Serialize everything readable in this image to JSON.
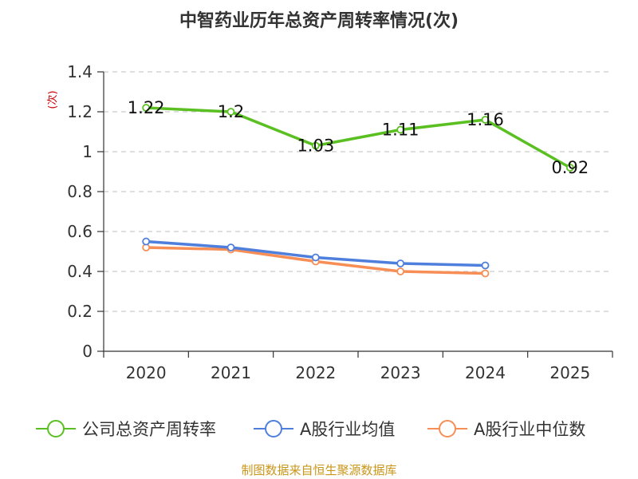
{
  "chart_data": {
    "type": "line",
    "title": "中智药业历年总资产周转率情况(次)",
    "ylabel": "(次)",
    "xlabel": "",
    "categories": [
      "2020",
      "2021",
      "2022",
      "2023",
      "2024",
      "2025"
    ],
    "ylim": [
      0,
      1.4
    ],
    "yticks": [
      0,
      0.2,
      0.4,
      0.6,
      0.8,
      1,
      1.2,
      1.4
    ],
    "grid": true,
    "legend_position": "bottom",
    "series": [
      {
        "name": "公司总资产周转率",
        "color": "#5ac021",
        "values": [
          1.22,
          1.2,
          1.03,
          1.11,
          1.16,
          0.92
        ],
        "labels": [
          "1.22",
          "1.2",
          "1.03",
          "1.11",
          "1.16",
          "0.92"
        ]
      },
      {
        "name": "A股行业均值",
        "color": "#4f7fdc",
        "values": [
          0.55,
          0.52,
          0.47,
          0.44,
          0.43,
          null
        ],
        "labels": []
      },
      {
        "name": "A股行业中位数",
        "color": "#f68e56",
        "values": [
          0.52,
          0.51,
          0.45,
          0.4,
          0.39,
          null
        ],
        "labels": []
      }
    ]
  },
  "footer": {
    "source": "制图数据来自恒生聚源数据库",
    "source_color": "#c9961a"
  }
}
